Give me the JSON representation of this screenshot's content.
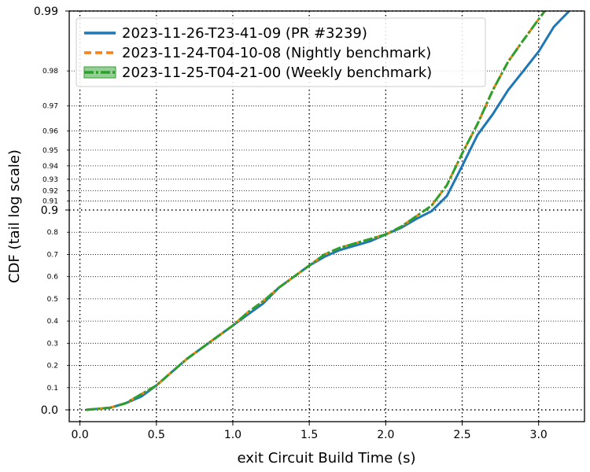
{
  "chart_data": {
    "type": "line",
    "xlabel": "exit Circuit Build Time (s)",
    "ylabel": "CDF (tail log scale)",
    "xlim": [
      -0.07,
      3.3
    ],
    "x_ticks": [
      "0.0",
      "0.5",
      "1.0",
      "1.5",
      "2.0",
      "2.5",
      "3.0"
    ],
    "x_tick_values": [
      0.0,
      0.5,
      1.0,
      1.5,
      2.0,
      2.5,
      3.0
    ],
    "y_scale": "tail-log",
    "y_major_ticks": [
      "0.0",
      "0.9",
      "0.99"
    ],
    "y_major_values": [
      0.0,
      0.9,
      0.99
    ],
    "y_minor_ticks": [
      "0.1",
      "0.2",
      "0.3",
      "0.4",
      "0.5",
      "0.6",
      "0.7",
      "0.8",
      "0.91",
      "0.92",
      "0.93",
      "0.94",
      "0.95",
      "0.96",
      "0.97",
      "0.98"
    ],
    "y_minor_values": [
      0.1,
      0.2,
      0.3,
      0.4,
      0.5,
      0.6,
      0.7,
      0.8,
      0.91,
      0.92,
      0.93,
      0.94,
      0.95,
      0.96,
      0.97,
      0.98
    ],
    "grid": true,
    "legend_position": "top-left",
    "series": [
      {
        "name": "2023-11-26-T23-41-09 (PR #3239)",
        "color": "#1f77b4",
        "style": "solid",
        "points": [
          [
            0.04,
            0.0
          ],
          [
            0.2,
            0.01
          ],
          [
            0.3,
            0.03
          ],
          [
            0.4,
            0.06
          ],
          [
            0.5,
            0.11
          ],
          [
            0.6,
            0.17
          ],
          [
            0.7,
            0.23
          ],
          [
            0.8,
            0.28
          ],
          [
            0.9,
            0.33
          ],
          [
            1.0,
            0.38
          ],
          [
            1.1,
            0.43
          ],
          [
            1.2,
            0.48
          ],
          [
            1.3,
            0.55
          ],
          [
            1.4,
            0.6
          ],
          [
            1.5,
            0.65
          ],
          [
            1.6,
            0.69
          ],
          [
            1.7,
            0.72
          ],
          [
            1.8,
            0.74
          ],
          [
            1.9,
            0.76
          ],
          [
            2.0,
            0.79
          ],
          [
            2.1,
            0.82
          ],
          [
            2.2,
            0.86
          ],
          [
            2.3,
            0.895
          ],
          [
            2.4,
            0.915
          ],
          [
            2.5,
            0.94
          ],
          [
            2.6,
            0.958
          ],
          [
            2.7,
            0.967
          ],
          [
            2.8,
            0.975
          ],
          [
            2.9,
            0.98
          ],
          [
            3.0,
            0.984
          ],
          [
            3.1,
            0.988
          ],
          [
            3.2,
            0.99
          ]
        ]
      },
      {
        "name": "2023-11-24-T04-10-08 (Nightly benchmark)",
        "color": "#ff7f0e",
        "style": "dashed",
        "points": [
          [
            0.04,
            0.0
          ],
          [
            0.2,
            0.01
          ],
          [
            0.3,
            0.03
          ],
          [
            0.4,
            0.07
          ],
          [
            0.5,
            0.11
          ],
          [
            0.6,
            0.17
          ],
          [
            0.7,
            0.23
          ],
          [
            0.8,
            0.28
          ],
          [
            0.9,
            0.33
          ],
          [
            1.0,
            0.38
          ],
          [
            1.1,
            0.44
          ],
          [
            1.2,
            0.49
          ],
          [
            1.3,
            0.55
          ],
          [
            1.4,
            0.6
          ],
          [
            1.5,
            0.65
          ],
          [
            1.6,
            0.7
          ],
          [
            1.7,
            0.73
          ],
          [
            1.8,
            0.75
          ],
          [
            1.9,
            0.77
          ],
          [
            2.0,
            0.79
          ],
          [
            2.1,
            0.825
          ],
          [
            2.2,
            0.872
          ],
          [
            2.3,
            0.905
          ],
          [
            2.4,
            0.925
          ],
          [
            2.5,
            0.948
          ],
          [
            2.6,
            0.963
          ],
          [
            2.7,
            0.975
          ],
          [
            2.8,
            0.982
          ],
          [
            2.9,
            0.986
          ],
          [
            3.0,
            0.989
          ],
          [
            3.04,
            0.99
          ]
        ]
      },
      {
        "name": "2023-11-25-T04-21-00 (Weekly benchmark)",
        "color": "#2ca02c",
        "style": "dashdot",
        "points": [
          [
            0.04,
            0.0
          ],
          [
            0.2,
            0.01
          ],
          [
            0.3,
            0.03
          ],
          [
            0.4,
            0.07
          ],
          [
            0.5,
            0.11
          ],
          [
            0.6,
            0.17
          ],
          [
            0.7,
            0.23
          ],
          [
            0.8,
            0.28
          ],
          [
            0.9,
            0.33
          ],
          [
            1.0,
            0.38
          ],
          [
            1.1,
            0.44
          ],
          [
            1.2,
            0.49
          ],
          [
            1.3,
            0.55
          ],
          [
            1.4,
            0.6
          ],
          [
            1.5,
            0.65
          ],
          [
            1.6,
            0.7
          ],
          [
            1.7,
            0.73
          ],
          [
            1.8,
            0.75
          ],
          [
            1.9,
            0.77
          ],
          [
            2.0,
            0.79
          ],
          [
            2.1,
            0.825
          ],
          [
            2.2,
            0.872
          ],
          [
            2.3,
            0.905
          ],
          [
            2.4,
            0.925
          ],
          [
            2.5,
            0.948
          ],
          [
            2.6,
            0.963
          ],
          [
            2.7,
            0.975
          ],
          [
            2.8,
            0.982
          ],
          [
            2.9,
            0.986
          ],
          [
            3.0,
            0.989
          ],
          [
            3.04,
            0.99
          ]
        ]
      }
    ]
  }
}
